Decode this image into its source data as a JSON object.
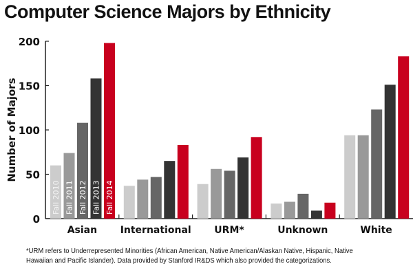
{
  "chart_data": {
    "type": "bar",
    "title": "Computer Science Majors by Ethnicity",
    "ylabel": "Number of Majors",
    "xlabel": "",
    "ylim": [
      0,
      200
    ],
    "yticks": [
      0,
      50,
      100,
      150,
      200
    ],
    "categories": [
      "Asian",
      "International",
      "URM*",
      "Unknown",
      "White"
    ],
    "series": [
      {
        "name": "Fall 2010",
        "color": "#cccccc",
        "values": [
          60,
          37,
          39,
          17,
          94
        ]
      },
      {
        "name": "Fall 2011",
        "color": "#999999",
        "values": [
          74,
          44,
          56,
          19,
          94
        ]
      },
      {
        "name": "Fall 2012",
        "color": "#666666",
        "values": [
          108,
          47,
          54,
          28,
          123
        ]
      },
      {
        "name": "Fall 2013",
        "color": "#333333",
        "values": [
          158,
          65,
          69,
          9,
          151
        ]
      },
      {
        "name": "Fall 2014",
        "color": "#c8001e",
        "values": [
          198,
          83,
          92,
          18,
          183
        ]
      }
    ],
    "legend": "inline labels inside Asian bars",
    "grid": false
  },
  "footnote": "*URM refers to Underrepresented Minorities (African American, Native American/Alaskan Native, Hispanic, Native Hawaiian and Pacific Islander). Data provided by Stanford IR&DS which also provided the categorizations."
}
